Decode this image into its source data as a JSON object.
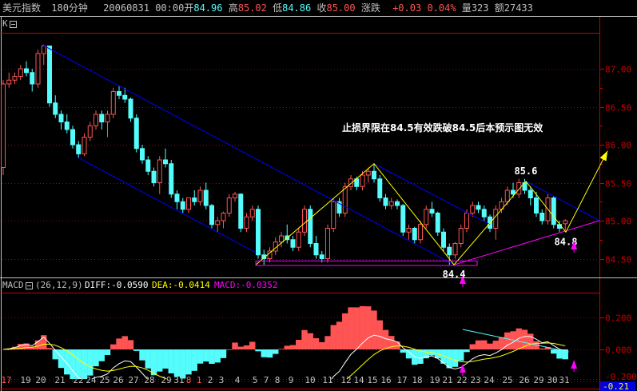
{
  "header": {
    "symbol": "美元指数",
    "period": "180分钟",
    "datetime": "20060831 00:00",
    "open_label": "开",
    "open": "84.96",
    "high_label": "高",
    "high": "85.02",
    "low_label": "低",
    "low": "84.86",
    "close_label": "收",
    "close": "85.00",
    "change_label": "涨跌",
    "change": "+0.03",
    "change_pct": "0.04%",
    "volume_label": "量",
    "volume": "323",
    "amount_label": "额",
    "amount": "27433"
  },
  "main_panel": {
    "label": "K",
    "collapse_icon": "minus-box-icon"
  },
  "macd_panel": {
    "label": "MACD",
    "collapse_icon": "minus-box-icon",
    "params": "(26,12,9)",
    "params_values": [
      26,
      12,
      9
    ],
    "diff_text": "DIFF:-0.0590",
    "dea_text": "DEA:-0.0414",
    "macd_text": "MACD:-0.0352",
    "axis_labels": [
      "0.200",
      "0.000",
      "-0.200"
    ],
    "current_value": "-0.21"
  },
  "colors": {
    "background": "#000000",
    "up": "#ff5454",
    "down": "#54fcfc",
    "grid": "#a80000",
    "axis_text": "#c80000",
    "diff": "#ffffff",
    "dea": "#ffff00",
    "macd_label": "#ff00ff",
    "channel": "#0000ff",
    "zigzag": "#ffff00",
    "support": "#ff00ff"
  },
  "annotation_text": "止损界限在84.5有效跌破84.5后本预示图无效",
  "chart_data": {
    "type": "candlestick",
    "price_axis": {
      "ticks": [
        "87.00",
        "86.50",
        "86.00",
        "85.50",
        "85.00",
        "84.50"
      ],
      "range": [
        84.3,
        87.6
      ],
      "grid": true
    },
    "x_tick_labels": [
      "17",
      "19",
      "20",
      "21",
      "22",
      "24",
      "25",
      "26",
      "27",
      "28",
      "29",
      "31",
      "8",
      "1",
      "2",
      "3",
      "4",
      "5",
      "7",
      "8",
      "9",
      "10",
      "11",
      "12",
      "14",
      "15",
      "16",
      "17",
      "18",
      "19",
      "21",
      "22",
      "23",
      "24",
      "25",
      "26",
      "29",
      "30",
      "31"
    ],
    "x_tick_highlight": [
      "17",
      "8",
      "1"
    ],
    "candles_ohlc": [
      [
        85.7,
        86.85,
        85.6,
        86.8
      ],
      [
        86.8,
        86.95,
        86.75,
        86.85
      ],
      [
        86.85,
        86.95,
        86.8,
        86.9
      ],
      [
        86.9,
        87.05,
        86.85,
        87.0
      ],
      [
        87.0,
        87.1,
        86.9,
        86.95
      ],
      [
        86.95,
        87.0,
        86.7,
        86.8
      ],
      [
        86.8,
        87.25,
        86.75,
        87.2
      ],
      [
        87.2,
        87.32,
        87.05,
        87.3
      ],
      [
        87.3,
        87.3,
        86.5,
        86.55
      ],
      [
        86.55,
        86.65,
        86.35,
        86.4
      ],
      [
        86.4,
        86.45,
        86.2,
        86.3
      ],
      [
        86.3,
        86.4,
        86.15,
        86.2
      ],
      [
        86.2,
        86.25,
        85.95,
        86.0
      ],
      [
        86.0,
        86.05,
        85.82,
        85.88
      ],
      [
        85.88,
        86.15,
        85.85,
        86.1
      ],
      [
        86.1,
        86.3,
        86.05,
        86.25
      ],
      [
        86.25,
        86.45,
        86.2,
        86.4
      ],
      [
        86.4,
        86.45,
        86.2,
        86.3
      ],
      [
        86.3,
        86.45,
        86.1,
        86.4
      ],
      [
        86.4,
        86.75,
        86.35,
        86.7
      ],
      [
        86.7,
        86.78,
        86.6,
        86.65
      ],
      [
        86.65,
        86.75,
        86.55,
        86.6
      ],
      [
        86.6,
        86.62,
        86.3,
        86.35
      ],
      [
        86.35,
        86.4,
        85.9,
        85.95
      ],
      [
        85.95,
        86.0,
        85.75,
        85.8
      ],
      [
        85.8,
        85.85,
        85.6,
        85.65
      ],
      [
        85.65,
        85.7,
        85.45,
        85.5
      ],
      [
        85.5,
        85.85,
        85.35,
        85.8
      ],
      [
        85.8,
        85.95,
        85.7,
        85.75
      ],
      [
        85.75,
        85.8,
        85.3,
        85.35
      ],
      [
        85.35,
        85.4,
        85.15,
        85.25
      ],
      [
        85.25,
        85.3,
        85.1,
        85.15
      ],
      [
        85.15,
        85.3,
        85.1,
        85.3
      ],
      [
        85.3,
        85.4,
        85.2,
        85.25
      ],
      [
        85.25,
        85.45,
        85.2,
        85.4
      ],
      [
        85.4,
        85.5,
        85.15,
        85.2
      ],
      [
        85.2,
        85.22,
        84.9,
        84.95
      ],
      [
        84.95,
        85.05,
        84.85,
        85.0
      ],
      [
        85.0,
        85.12,
        84.9,
        85.1
      ],
      [
        85.1,
        85.35,
        85.05,
        85.3
      ],
      [
        85.3,
        85.38,
        85.25,
        85.35
      ],
      [
        85.35,
        85.36,
        84.85,
        84.9
      ],
      [
        84.9,
        85.1,
        84.85,
        85.05
      ],
      [
        85.05,
        85.2,
        85.0,
        85.15
      ],
      [
        85.15,
        85.2,
        84.5,
        84.55
      ],
      [
        84.55,
        84.62,
        84.42,
        84.5
      ],
      [
        84.5,
        84.65,
        84.45,
        84.6
      ],
      [
        84.6,
        84.78,
        84.55,
        84.72
      ],
      [
        84.72,
        84.85,
        84.65,
        84.8
      ],
      [
        84.8,
        84.95,
        84.7,
        84.75
      ],
      [
        84.75,
        84.8,
        84.6,
        84.65
      ],
      [
        84.65,
        84.9,
        84.6,
        84.85
      ],
      [
        84.85,
        85.2,
        84.8,
        85.15
      ],
      [
        85.15,
        85.2,
        84.65,
        84.7
      ],
      [
        84.7,
        84.8,
        84.5,
        84.55
      ],
      [
        84.55,
        84.6,
        84.45,
        84.5
      ],
      [
        84.5,
        84.95,
        84.45,
        84.9
      ],
      [
        84.9,
        85.3,
        84.85,
        85.25
      ],
      [
        85.25,
        85.3,
        85.05,
        85.1
      ],
      [
        85.1,
        85.5,
        85.05,
        85.45
      ],
      [
        85.45,
        85.6,
        85.4,
        85.55
      ],
      [
        85.55,
        85.58,
        85.4,
        85.45
      ],
      [
        85.45,
        85.65,
        85.4,
        85.6
      ],
      [
        85.6,
        85.7,
        85.5,
        85.65
      ],
      [
        85.65,
        85.75,
        85.5,
        85.55
      ],
      [
        85.55,
        85.6,
        85.25,
        85.3
      ],
      [
        85.3,
        85.35,
        85.15,
        85.2
      ],
      [
        85.2,
        85.3,
        85.15,
        85.25
      ],
      [
        85.25,
        85.28,
        85.15,
        85.2
      ],
      [
        85.2,
        85.22,
        84.8,
        84.85
      ],
      [
        84.85,
        84.95,
        84.75,
        84.9
      ],
      [
        84.9,
        84.92,
        84.7,
        84.75
      ],
      [
        84.75,
        85.0,
        84.7,
        84.95
      ],
      [
        84.95,
        85.2,
        84.9,
        85.15
      ],
      [
        85.15,
        85.25,
        85.05,
        85.1
      ],
      [
        85.1,
        85.12,
        84.8,
        84.85
      ],
      [
        84.85,
        84.9,
        84.6,
        84.65
      ],
      [
        84.65,
        84.7,
        84.42,
        84.55
      ],
      [
        84.55,
        84.72,
        84.5,
        84.7
      ],
      [
        84.7,
        84.95,
        84.65,
        84.9
      ],
      [
        84.9,
        85.15,
        84.85,
        85.1
      ],
      [
        85.1,
        85.25,
        85.05,
        85.2
      ],
      [
        85.2,
        85.25,
        85.1,
        85.15
      ],
      [
        85.15,
        85.2,
        85.0,
        85.05
      ],
      [
        85.05,
        85.08,
        84.85,
        84.9
      ],
      [
        84.9,
        85.2,
        84.75,
        85.15
      ],
      [
        85.15,
        85.3,
        85.1,
        85.25
      ],
      [
        85.25,
        85.45,
        85.2,
        85.4
      ],
      [
        85.4,
        85.5,
        85.3,
        85.35
      ],
      [
        85.35,
        85.55,
        85.3,
        85.5
      ],
      [
        85.5,
        85.55,
        85.35,
        85.4
      ],
      [
        85.4,
        85.45,
        85.2,
        85.3
      ],
      [
        85.3,
        85.38,
        85.05,
        85.1
      ],
      [
        85.1,
        85.15,
        84.95,
        85.0
      ],
      [
        85.0,
        85.35,
        84.95,
        85.3
      ],
      [
        85.3,
        85.32,
        84.9,
        84.95
      ],
      [
        84.95,
        85.0,
        84.85,
        84.9
      ],
      [
        84.96,
        85.02,
        84.86,
        85.0
      ]
    ],
    "trend_lines": [
      {
        "kind": "channel",
        "points": [
          [
            6.6,
            87.32
          ],
          [
            77.8,
            84.42
          ]
        ]
      },
      {
        "kind": "channel",
        "points": [
          [
            12.7,
            85.84
          ],
          [
            43.6,
            84.58
          ]
        ]
      },
      {
        "kind": "channel",
        "points": [
          [
            64,
            85.75
          ],
          [
            84,
            84.95
          ]
        ]
      },
      {
        "kind": "channel",
        "points": [
          [
            90.2,
            85.52
          ],
          [
            102.9,
            85.0
          ]
        ]
      },
      {
        "kind": "support",
        "points": [
          [
            77.8,
            84.42
          ],
          [
            102.9,
            85.0
          ]
        ]
      },
      {
        "kind": "zigzag",
        "points": [
          [
            43.6,
            84.42
          ],
          [
            64,
            85.75
          ],
          [
            77.8,
            84.42
          ],
          [
            90.2,
            85.52
          ],
          [
            97.1,
            84.85
          ],
          [
            104.3,
            85.92
          ]
        ]
      }
    ],
    "support_box": {
      "bars": [
        43.6,
        81.8
      ],
      "prices": [
        84.41,
        84.47
      ]
    },
    "price_labels": [
      {
        "text": "84.4",
        "bar": 77.8,
        "price": 84.42,
        "pos": "below"
      },
      {
        "text": "85.6",
        "bar": 90.2,
        "price": 85.55,
        "pos": "above"
      },
      {
        "text": "84.8",
        "bar": 97.1,
        "price": 84.85,
        "pos": "below"
      }
    ],
    "buy_markers": [
      79.3,
      98.5
    ],
    "macd_divergence_line": [
      [
        79.3,
        0.125
      ],
      [
        97.6,
        -0.015
      ]
    ],
    "macd_axis_range": [
      -0.25,
      0.35
    ]
  }
}
